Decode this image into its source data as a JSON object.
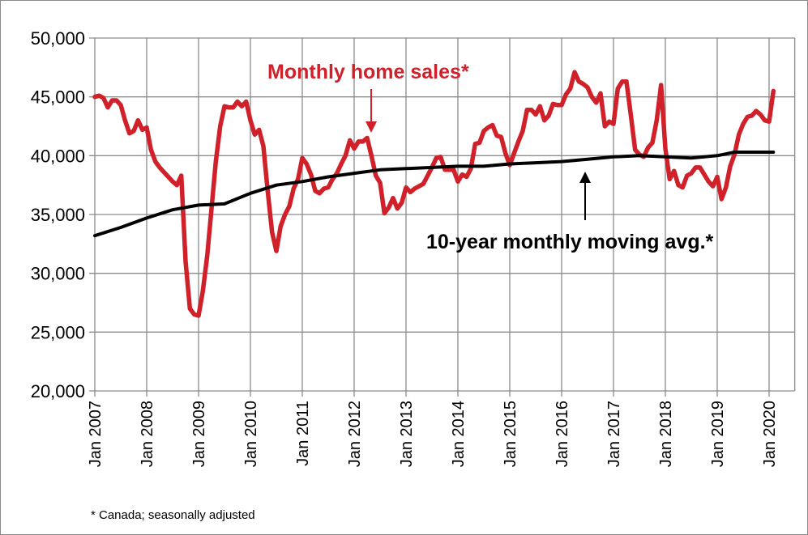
{
  "chart_data": {
    "type": "line",
    "title": "",
    "xlabel": "",
    "ylabel": "",
    "ylim": [
      20000,
      50000
    ],
    "yticks": [
      "20,000",
      "25,000",
      "30,000",
      "35,000",
      "40,000",
      "45,000",
      "50,000"
    ],
    "ytick_values": [
      20000,
      25000,
      30000,
      35000,
      40000,
      45000,
      50000
    ],
    "xtick_labels": [
      "Jan 2007",
      "Jan 2008",
      "Jan 2009",
      "Jan 2010",
      "Jan 2011",
      "Jan 2012",
      "Jan 2013",
      "Jan 2014",
      "Jan 2015",
      "Jan 2016",
      "Jan 2017",
      "Jan 2018",
      "Jan 2019",
      "Jan 2020"
    ],
    "xtick_dates": [
      "2007-01",
      "2008-01",
      "2009-01",
      "2010-01",
      "2011-01",
      "2012-01",
      "2013-01",
      "2014-01",
      "2015-01",
      "2016-01",
      "2017-01",
      "2018-01",
      "2019-01",
      "2020-01"
    ],
    "xlim": [
      "2007-01",
      "2020-06"
    ],
    "grid": true,
    "series": [
      {
        "name": "Monthly home sales*",
        "color": "#d0202a",
        "start": "2007-01",
        "frequency": "monthly",
        "values": [
          45000,
          45100,
          44900,
          44100,
          44700,
          44700,
          44300,
          43000,
          41900,
          42100,
          43000,
          42200,
          42400,
          40500,
          39500,
          39000,
          38600,
          38200,
          37800,
          37500,
          38300,
          31000,
          27000,
          26500,
          26400,
          28500,
          31500,
          35500,
          39500,
          42500,
          44200,
          44100,
          44100,
          44600,
          44200,
          44600,
          43000,
          41800,
          42200,
          40800,
          37000,
          33500,
          31900,
          34000,
          35000,
          35700,
          37200,
          38000,
          39800,
          39300,
          38400,
          37000,
          36800,
          37200,
          37300,
          38000,
          38500,
          39300,
          40000,
          41300,
          40600,
          41200,
          41200,
          41500,
          40000,
          38300,
          37700,
          35100,
          35600,
          36400,
          35500,
          36000,
          37300,
          36900,
          37200,
          37400,
          37600,
          38300,
          39000,
          39800,
          39900,
          38800,
          38800,
          38800,
          37800,
          38400,
          38200,
          38900,
          41000,
          41100,
          42100,
          42400,
          42600,
          41700,
          41600,
          40200,
          39200,
          40200,
          41200,
          42100,
          43900,
          43900,
          43500,
          44200,
          43000,
          43400,
          44400,
          44300,
          44300,
          45200,
          45700,
          47100,
          46300,
          46100,
          45800,
          45000,
          44500,
          45300,
          42500,
          42900,
          42700,
          45700,
          46300,
          46300,
          43500,
          40500,
          40100,
          39900,
          40700,
          41100,
          43000,
          46000,
          40600,
          38000,
          38700,
          37500,
          37300,
          38300,
          38500,
          39000,
          39000,
          38400,
          37800,
          37400,
          38200,
          36300,
          37300,
          39100,
          40100,
          41800,
          42700,
          43300,
          43400,
          43800,
          43500,
          43000,
          42900,
          45500
        ]
      },
      {
        "name": "10-year monthly moving avg.*",
        "color": "#000000",
        "dates": [
          "2007-01",
          "2007-07",
          "2008-01",
          "2008-07",
          "2009-01",
          "2009-07",
          "2010-01",
          "2010-07",
          "2011-01",
          "2011-07",
          "2012-01",
          "2012-07",
          "2013-01",
          "2013-07",
          "2014-01",
          "2014-07",
          "2015-01",
          "2015-07",
          "2016-01",
          "2016-07",
          "2017-01",
          "2017-07",
          "2018-01",
          "2018-07",
          "2019-01",
          "2019-05",
          "2019-07",
          "2020-02"
        ],
        "values": [
          33200,
          33900,
          34700,
          35400,
          35800,
          35900,
          36800,
          37500,
          37800,
          38200,
          38500,
          38800,
          38900,
          39000,
          39100,
          39100,
          39300,
          39400,
          39500,
          39700,
          39900,
          40000,
          39900,
          39800,
          40000,
          40300,
          40300,
          40300
        ]
      }
    ],
    "annotations": [
      {
        "text": "Monthly home sales*",
        "color": "#d0202a",
        "points_to": "2012-05"
      },
      {
        "text": "10-year monthly moving avg.*",
        "color": "#000000",
        "points_to": "2016-07"
      }
    ],
    "footnote": "* Canada; seasonally adjusted"
  }
}
